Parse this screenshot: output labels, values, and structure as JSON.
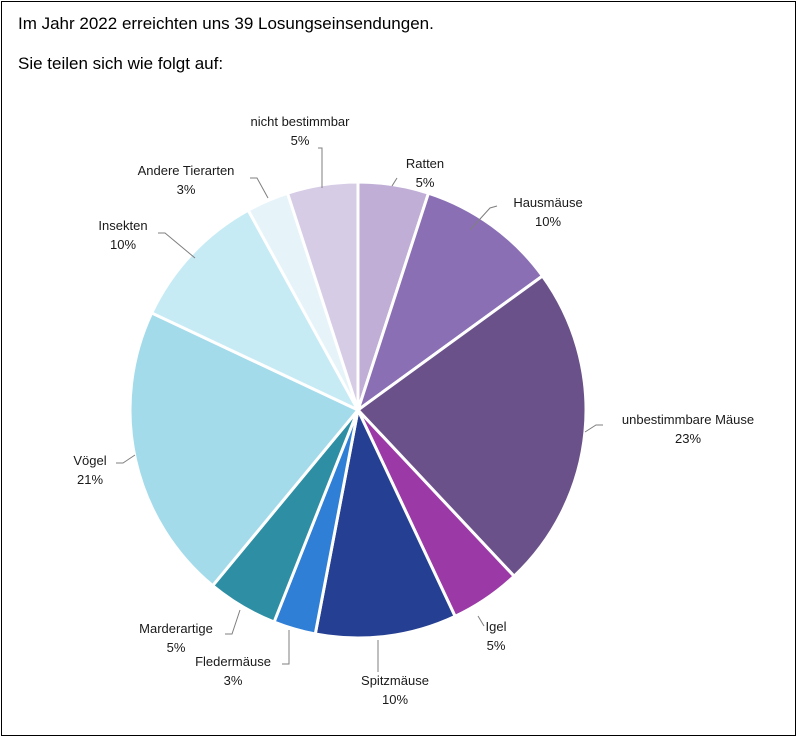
{
  "intro": {
    "line1": "Im Jahr 2022 erreichten uns 39 Losungseinsendungen.",
    "line2": "Sie teilen sich wie folgt auf:"
  },
  "chart_data": {
    "type": "pie",
    "start_angle_deg": 0,
    "direction": "clockwise",
    "slices": [
      {
        "label": "Ratten",
        "value": 5,
        "pct": "5%",
        "color": "#c0aed6"
      },
      {
        "label": "Hausmäuse",
        "value": 10,
        "pct": "10%",
        "color": "#8a6fb5"
      },
      {
        "label": "unbestimmbare Mäuse",
        "value": 23,
        "pct": "23%",
        "color": "#6a5189"
      },
      {
        "label": "Igel",
        "value": 5,
        "pct": "5%",
        "color": "#9b3aa6"
      },
      {
        "label": "Spitzmäuse",
        "value": 10,
        "pct": "10%",
        "color": "#253f92"
      },
      {
        "label": "Fledermäuse",
        "value": 3,
        "pct": "3%",
        "color": "#2f7fd6"
      },
      {
        "label": "Marderartige",
        "value": 5,
        "pct": "5%",
        "color": "#2e8fa4"
      },
      {
        "label": "Vögel",
        "value": 21,
        "pct": "21%",
        "color": "#a4dbea"
      },
      {
        "label": "Insekten",
        "value": 10,
        "pct": "10%",
        "color": "#c6ebf5"
      },
      {
        "label": "Andere Tierarten",
        "value": 3,
        "pct": "3%",
        "color": "#e6f4fa"
      },
      {
        "label": "nicht bestimmbar",
        "value": 5,
        "pct": "5%",
        "color": "#d7cce6"
      }
    ]
  }
}
